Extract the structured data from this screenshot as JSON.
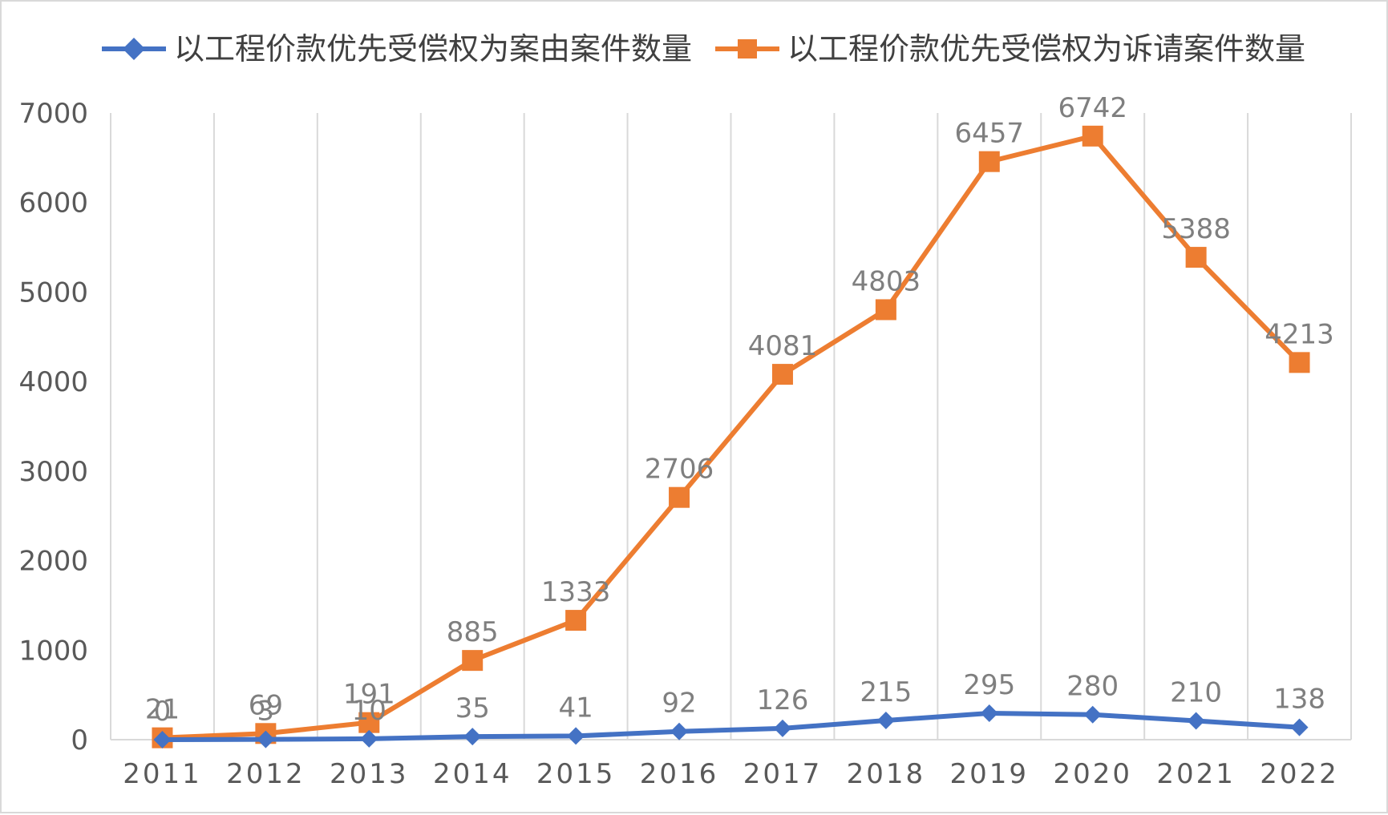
{
  "chart_data": {
    "type": "line",
    "title": "",
    "xlabel": "",
    "ylabel": "",
    "categories": [
      "2011",
      "2012",
      "2013",
      "2014",
      "2015",
      "2016",
      "2017",
      "2018",
      "2019",
      "2020",
      "2021",
      "2022"
    ],
    "ylim": [
      0,
      7000
    ],
    "y_ticks": [
      "0",
      "1000",
      "2000",
      "3000",
      "4000",
      "5000",
      "6000",
      "7000"
    ],
    "grid": "vertical",
    "legend_position": "top",
    "series": [
      {
        "name": "以工程价款优先受偿权为案由案件数量",
        "color": "#4472c4",
        "marker": "diamond",
        "values": [
          0,
          3,
          10,
          35,
          41,
          92,
          126,
          215,
          295,
          280,
          210,
          138
        ],
        "labels": [
          "0",
          "3",
          "10",
          "35",
          "41",
          "92",
          "126",
          "215",
          "295",
          "280",
          "210",
          "138"
        ]
      },
      {
        "name": "以工程价款优先受偿权为诉请案件数量",
        "color": "#ed7d31",
        "marker": "square",
        "values": [
          21,
          69,
          191,
          885,
          1333,
          2706,
          4081,
          4803,
          6457,
          6742,
          5388,
          4213
        ],
        "labels": [
          "21",
          "69",
          "191",
          "885",
          "1333",
          "2706",
          "4081",
          "4803",
          "6457",
          "6742",
          "5388",
          "4213"
        ]
      }
    ]
  }
}
